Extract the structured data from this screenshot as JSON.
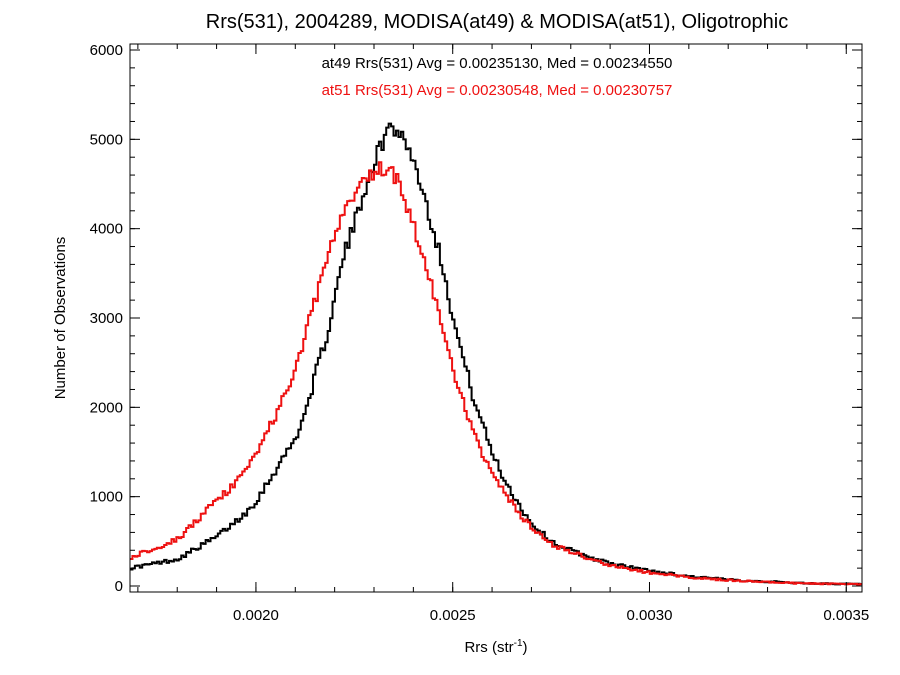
{
  "chart_data": {
    "type": "line",
    "title": "Rrs(531), 2004289, MODISA(at49) & MODISA(at51), Oligotrophic",
    "xlabel_main": "Rrs (str",
    "xlabel_sup": "-1",
    "xlabel_tail": ")",
    "ylabel": "Number of Observations",
    "xlim": [
      0.00168,
      0.00354
    ],
    "ylim": [
      0,
      6000
    ],
    "xticks": [
      {
        "v": 0.002,
        "label": "0.0020"
      },
      {
        "v": 0.0025,
        "label": "0.0025"
      },
      {
        "v": 0.003,
        "label": "0.0030"
      },
      {
        "v": 0.0035,
        "label": "0.0035"
      }
    ],
    "yticks": [
      {
        "v": 0,
        "label": "0"
      },
      {
        "v": 1000,
        "label": "1000"
      },
      {
        "v": 2000,
        "label": "2000"
      },
      {
        "v": 3000,
        "label": "3000"
      },
      {
        "v": 4000,
        "label": "4000"
      },
      {
        "v": 5000,
        "label": "5000"
      },
      {
        "v": 6000,
        "label": "6000"
      }
    ],
    "grid": false,
    "legend_placement": "top-center",
    "series": [
      {
        "label": "at49 Rrs(531) Avg = 0.00235130, Med = 0.00234550",
        "color": "#000000",
        "points": [
          [
            0.00168,
            200
          ],
          [
            0.0018,
            300
          ],
          [
            0.0019,
            550
          ],
          [
            0.00197,
            800
          ],
          [
            0.002,
            950
          ],
          [
            0.00205,
            1300
          ],
          [
            0.0021,
            1650
          ],
          [
            0.00213,
            2000
          ],
          [
            0.00215,
            2350
          ],
          [
            0.00218,
            2800
          ],
          [
            0.0022,
            3200
          ],
          [
            0.00222,
            3650
          ],
          [
            0.00225,
            4050
          ],
          [
            0.00228,
            4500
          ],
          [
            0.0023,
            4750
          ],
          [
            0.00232,
            4950
          ],
          [
            0.00234,
            5150
          ],
          [
            0.00236,
            5100
          ],
          [
            0.00238,
            5000
          ],
          [
            0.0024,
            4750
          ],
          [
            0.00242,
            4500
          ],
          [
            0.00245,
            4000
          ],
          [
            0.00248,
            3500
          ],
          [
            0.0025,
            3000
          ],
          [
            0.00253,
            2500
          ],
          [
            0.00255,
            2150
          ],
          [
            0.00258,
            1750
          ],
          [
            0.0026,
            1500
          ],
          [
            0.00263,
            1200
          ],
          [
            0.00267,
            900
          ],
          [
            0.0027,
            700
          ],
          [
            0.00275,
            500
          ],
          [
            0.0028,
            400
          ],
          [
            0.00285,
            320
          ],
          [
            0.0029,
            250
          ],
          [
            0.003,
            170
          ],
          [
            0.0031,
            110
          ],
          [
            0.0032,
            70
          ],
          [
            0.0033,
            50
          ],
          [
            0.0034,
            30
          ],
          [
            0.00354,
            20
          ]
        ]
      },
      {
        "label": "at51 Rrs(531) Avg = 0.00230548, Med = 0.00230757",
        "color": "#ee1111",
        "points": [
          [
            0.00168,
            320
          ],
          [
            0.0018,
            520
          ],
          [
            0.0019,
            950
          ],
          [
            0.00195,
            1150
          ],
          [
            0.002,
            1500
          ],
          [
            0.00205,
            1900
          ],
          [
            0.0021,
            2400
          ],
          [
            0.00213,
            2900
          ],
          [
            0.00215,
            3200
          ],
          [
            0.00218,
            3600
          ],
          [
            0.0022,
            3950
          ],
          [
            0.00223,
            4200
          ],
          [
            0.00225,
            4400
          ],
          [
            0.00228,
            4550
          ],
          [
            0.0023,
            4650
          ],
          [
            0.00232,
            4680
          ],
          [
            0.00234,
            4650
          ],
          [
            0.00236,
            4550
          ],
          [
            0.00238,
            4300
          ],
          [
            0.0024,
            4050
          ],
          [
            0.00242,
            3750
          ],
          [
            0.00245,
            3300
          ],
          [
            0.00248,
            2800
          ],
          [
            0.0025,
            2400
          ],
          [
            0.00253,
            2000
          ],
          [
            0.00255,
            1750
          ],
          [
            0.00258,
            1450
          ],
          [
            0.0026,
            1250
          ],
          [
            0.00263,
            1050
          ],
          [
            0.00267,
            800
          ],
          [
            0.0027,
            650
          ],
          [
            0.00275,
            470
          ],
          [
            0.0028,
            380
          ],
          [
            0.00285,
            300
          ],
          [
            0.0029,
            230
          ],
          [
            0.003,
            150
          ],
          [
            0.0031,
            100
          ],
          [
            0.0032,
            65
          ],
          [
            0.0033,
            45
          ],
          [
            0.0034,
            28
          ],
          [
            0.00354,
            18
          ]
        ]
      }
    ]
  }
}
